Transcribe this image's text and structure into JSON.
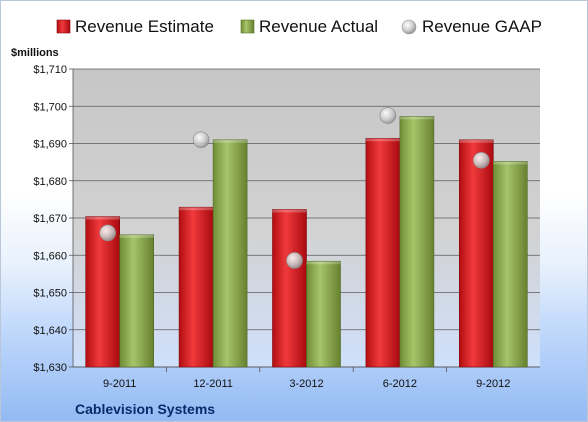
{
  "chart_data": {
    "type": "bar",
    "unit_label": "$millions",
    "company": "Cablevision Systems",
    "categories": [
      "9-2011",
      "12-2011",
      "3-2012",
      "6-2012",
      "9-2012"
    ],
    "series": [
      {
        "name": "Revenue Estimate",
        "kind": "bar",
        "color": "#d7131b",
        "values": [
          1670.4,
          1672.9,
          1672.3,
          1691.4,
          1691.0
        ]
      },
      {
        "name": "Revenue Actual",
        "kind": "bar",
        "color": "#8aa94a",
        "values": [
          1665.5,
          1691.0,
          1658.4,
          1697.3,
          1685.2
        ]
      },
      {
        "name": "Revenue GAAP",
        "kind": "marker",
        "color": "#c8c8c8",
        "values": [
          1666.0,
          1691.0,
          1658.6,
          1697.5,
          1685.5
        ]
      }
    ],
    "ylim": [
      1630,
      1710
    ],
    "yticks": [
      1630,
      1640,
      1650,
      1660,
      1670,
      1680,
      1690,
      1700,
      1710
    ],
    "ytick_labels": [
      "$1,630",
      "$1,640",
      "$1,650",
      "$1,660",
      "$1,670",
      "$1,680",
      "$1,690",
      "$1,700",
      "$1,710"
    ],
    "grid": true,
    "legend_position": "top"
  }
}
